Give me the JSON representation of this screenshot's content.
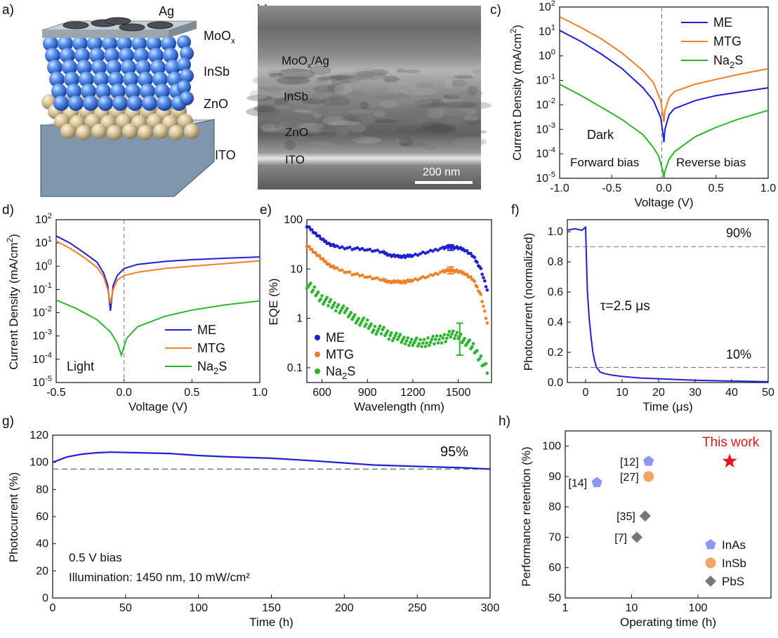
{
  "panel_labels": [
    "a)",
    "b)",
    "c)",
    "d)",
    "e)",
    "f)",
    "g)",
    "h)"
  ],
  "schematic": {
    "layers": [
      "Ag",
      "MoOx",
      "InSb",
      "ZnO",
      "ITO"
    ],
    "colors": {
      "glass": "#8fa6ba",
      "zno": "#d9c8a0",
      "insb": "#3d7be6",
      "moox": "#b9c4cc",
      "ag": "#555a60"
    }
  },
  "sem": {
    "labels": [
      "MoOx/Ag",
      "InSb",
      "ZnO",
      "ITO"
    ],
    "scale_bar": "200 nm"
  },
  "colors": {
    "ME": "#1f1fd6",
    "MTG": "#f07f25",
    "Na2S": "#2db52d",
    "red_star": "#e8141c",
    "InAs": "#8f96f2",
    "InSb": "#f3a566",
    "PbS": "#777777"
  },
  "chart_data": [
    {
      "id": "c",
      "type": "line",
      "xlabel": "Voltage (V)",
      "ylabel": "Current Density (mA/cm²)",
      "xlim": [
        -1.0,
        1.0
      ],
      "ylim_log10": [
        -5,
        2
      ],
      "log_y": true,
      "xticks": [
        "-1.0",
        "-0.5",
        "0.0",
        "0.5",
        "1.0"
      ],
      "yticks": [
        "10⁻⁵",
        "10⁻⁴",
        "10⁻³",
        "10⁻²",
        "10⁻¹",
        "10⁰",
        "10¹",
        "10²"
      ],
      "annotations": [
        "Dark",
        "Forward bias",
        "Reverse bias"
      ],
      "legend": [
        "ME",
        "MTG",
        "Na2S"
      ],
      "legend_position": "top-right",
      "series": [
        {
          "name": "ME",
          "x": [
            -1.0,
            -0.8,
            -0.6,
            -0.4,
            -0.2,
            -0.1,
            -0.03,
            -0.005,
            0.0,
            0.01,
            0.05,
            0.1,
            0.3,
            0.5,
            0.7,
            1.0
          ],
          "y": [
            11,
            4,
            1.2,
            0.3,
            0.05,
            0.015,
            0.003,
            0.0005,
            0.0003,
            0.001,
            0.004,
            0.007,
            0.015,
            0.024,
            0.032,
            0.05
          ]
        },
        {
          "name": "MTG",
          "x": [
            -1.0,
            -0.8,
            -0.6,
            -0.4,
            -0.2,
            -0.1,
            -0.03,
            -0.005,
            0.0,
            0.01,
            0.05,
            0.1,
            0.3,
            0.5,
            0.7,
            1.0
          ],
          "y": [
            40,
            15,
            5,
            1.3,
            0.25,
            0.08,
            0.015,
            0.003,
            0.002,
            0.006,
            0.02,
            0.035,
            0.07,
            0.11,
            0.17,
            0.3
          ]
        },
        {
          "name": "Na2S",
          "x": [
            -1.0,
            -0.8,
            -0.6,
            -0.4,
            -0.2,
            -0.1,
            -0.05,
            -0.01,
            0.0,
            0.01,
            0.05,
            0.1,
            0.3,
            0.5,
            0.7,
            1.0
          ],
          "y": [
            0.07,
            0.025,
            0.008,
            0.0025,
            0.0006,
            0.00018,
            8e-05,
            2e-05,
            1e-05,
            2e-05,
            6e-05,
            0.00012,
            0.0005,
            0.0012,
            0.0025,
            0.006
          ]
        }
      ]
    },
    {
      "id": "d",
      "type": "line",
      "xlabel": "Voltage (V)",
      "ylabel": "Current Density (mA/cm²)",
      "xlim": [
        -0.5,
        1.0
      ],
      "ylim_log10": [
        -5,
        2
      ],
      "log_y": true,
      "xticks": [
        "-0.5",
        "0.0",
        "0.5",
        "1.0"
      ],
      "yticks": [
        "10⁻⁵",
        "10⁻⁴",
        "10⁻³",
        "10⁻²",
        "10⁻¹",
        "10⁰",
        "10¹",
        "10²"
      ],
      "annotations": [
        "Light"
      ],
      "legend": [
        "ME",
        "MTG",
        "Na2S"
      ],
      "legend_position": "bottom-right",
      "series": [
        {
          "name": "ME",
          "x": [
            -0.5,
            -0.4,
            -0.3,
            -0.2,
            -0.15,
            -0.12,
            -0.1,
            -0.08,
            -0.05,
            0.0,
            0.1,
            0.3,
            0.5,
            0.75,
            1.0
          ],
          "y": [
            20,
            10,
            4,
            1.5,
            0.5,
            0.15,
            0.012,
            0.15,
            0.4,
            0.8,
            1.2,
            1.6,
            1.9,
            2.2,
            2.5
          ]
        },
        {
          "name": "MTG",
          "x": [
            -0.5,
            -0.4,
            -0.3,
            -0.2,
            -0.15,
            -0.12,
            -0.1,
            -0.08,
            -0.05,
            0.0,
            0.1,
            0.3,
            0.5,
            0.75,
            1.0
          ],
          "y": [
            12,
            6,
            2.5,
            0.9,
            0.35,
            0.1,
            0.025,
            0.1,
            0.25,
            0.4,
            0.55,
            0.8,
            1.0,
            1.3,
            1.7
          ]
        },
        {
          "name": "Na2S",
          "x": [
            -0.5,
            -0.35,
            -0.2,
            -0.1,
            -0.05,
            -0.02,
            0.0,
            0.02,
            0.1,
            0.3,
            0.5,
            0.75,
            1.0
          ],
          "y": [
            0.035,
            0.015,
            0.005,
            0.0015,
            0.0005,
            0.00015,
            0.00035,
            0.0008,
            0.0025,
            0.007,
            0.013,
            0.022,
            0.032
          ]
        }
      ]
    },
    {
      "id": "e",
      "type": "scatter",
      "xlabel": "Wavelength (nm)",
      "ylabel": "EQE (%)",
      "xlim": [
        500,
        1720
      ],
      "ylim_log10": [
        -1.3,
        2
      ],
      "log_y": true,
      "xticks": [
        "600",
        "900",
        "1200",
        "1500"
      ],
      "yticks": [
        "0.1",
        "1",
        "10",
        "100"
      ],
      "legend": [
        "ME",
        "MTG",
        "Na2S"
      ],
      "legend_position": "bottom-left",
      "series": [
        {
          "name": "ME",
          "x": [
            500,
            550,
            600,
            650,
            700,
            800,
            900,
            1000,
            1050,
            1100,
            1150,
            1200,
            1300,
            1400,
            1450,
            1500,
            1550,
            1600,
            1650,
            1700
          ],
          "y": [
            75,
            55,
            40,
            32,
            28,
            26,
            25,
            22,
            19,
            18,
            18,
            19,
            22,
            27,
            28,
            27,
            24,
            18,
            10,
            3
          ]
        },
        {
          "name": "MTG",
          "x": [
            500,
            550,
            600,
            650,
            700,
            800,
            900,
            1000,
            1050,
            1100,
            1150,
            1200,
            1300,
            1400,
            1450,
            1500,
            1550,
            1600,
            1650,
            1700
          ],
          "y": [
            30,
            22,
            16,
            12,
            10,
            8,
            7,
            6,
            5.5,
            5.5,
            5.5,
            6,
            7,
            9,
            9.5,
            9,
            8,
            6,
            3,
            0.6
          ]
        },
        {
          "name": "Na2S",
          "x": [
            500,
            550,
            600,
            650,
            700,
            750,
            800,
            850,
            900,
            950,
            1000,
            1050,
            1100,
            1150,
            1200,
            1250,
            1300,
            1350,
            1400,
            1450,
            1500,
            1550,
            1600,
            1650,
            1700
          ],
          "y": [
            5,
            3.5,
            2.5,
            2,
            1.7,
            1.4,
            1.1,
            0.9,
            0.75,
            0.6,
            0.55,
            0.45,
            0.4,
            0.35,
            0.35,
            0.3,
            0.35,
            0.35,
            0.4,
            0.45,
            0.45,
            0.35,
            0.25,
            0.15,
            0.08
          ]
        }
      ],
      "error_bars": [
        {
          "series": "ME",
          "x": 1450,
          "low": 24,
          "high": 31
        },
        {
          "series": "MTG",
          "x": 1450,
          "low": 8,
          "high": 11
        },
        {
          "series": "Na2S",
          "x": 1510,
          "low": 0.18,
          "high": 0.8
        }
      ]
    },
    {
      "id": "f",
      "type": "line",
      "xlabel": "Time (μs)",
      "ylabel": "Photocurrent (normalized)",
      "xlim": [
        -5,
        50
      ],
      "ylim": [
        0,
        1.08
      ],
      "xticks": [
        "0",
        "10",
        "20",
        "30",
        "40",
        "50"
      ],
      "yticks": [
        "0.0",
        "0.2",
        "0.4",
        "0.6",
        "0.8",
        "1.0"
      ],
      "reference_lines": [
        0.9,
        0.1
      ],
      "annotations": [
        "90%",
        "10%",
        "τ=2.5 μs"
      ],
      "series": [
        {
          "name": "ME",
          "x": [
            -5,
            -3,
            -1,
            0,
            0.2,
            0.5,
            1,
            1.5,
            2,
            2.5,
            3,
            4,
            5,
            7,
            10,
            15,
            20,
            25,
            30,
            40,
            50
          ],
          "y": [
            1.01,
            1.02,
            1.01,
            1.03,
            0.85,
            0.6,
            0.42,
            0.3,
            0.2,
            0.14,
            0.1,
            0.07,
            0.06,
            0.05,
            0.04,
            0.03,
            0.025,
            0.02,
            0.015,
            0.01,
            0.005
          ]
        }
      ]
    },
    {
      "id": "g",
      "type": "line",
      "xlabel": "Time (h)",
      "ylabel": "Photocurrent (%)",
      "xlim": [
        0,
        300
      ],
      "ylim": [
        0,
        120
      ],
      "xticks": [
        "0",
        "50",
        "100",
        "150",
        "200",
        "250",
        "300"
      ],
      "yticks": [
        "0",
        "20",
        "40",
        "60",
        "80",
        "100",
        "120"
      ],
      "reference_lines": [
        95
      ],
      "annotations": [
        "95%",
        "0.5 V bias",
        "Illumination: 1450 nm, 10 mW/cm²"
      ],
      "series": [
        {
          "name": "Photocurrent",
          "x": [
            0,
            10,
            20,
            30,
            40,
            60,
            80,
            100,
            120,
            150,
            180,
            200,
            220,
            250,
            280,
            300
          ],
          "y": [
            100,
            104,
            106,
            107,
            107.5,
            107,
            106.5,
            105,
            104,
            103,
            101,
            99.5,
            98,
            97,
            96,
            95
          ]
        }
      ]
    },
    {
      "id": "h",
      "type": "scatter",
      "xlabel": "Operating time (h)",
      "ylabel": "Performance retention (%)",
      "xlim_log10": [
        0,
        3.1
      ],
      "log_x": true,
      "ylim": [
        50,
        105
      ],
      "xticks": [
        "1",
        "10",
        "100"
      ],
      "yticks": [
        "50",
        "60",
        "70",
        "80",
        "90",
        "100"
      ],
      "legend": [
        "InAs",
        "InSb",
        "PbS"
      ],
      "legend_position": "bottom-right",
      "points": [
        {
          "label": "[14]",
          "group": "InAs",
          "x": 3,
          "y": 88
        },
        {
          "label": "[12]",
          "group": "InAs",
          "x": 18,
          "y": 95
        },
        {
          "label": "[27]",
          "group": "InSb",
          "x": 18,
          "y": 90
        },
        {
          "label": "[35]",
          "group": "PbS",
          "x": 16,
          "y": 77
        },
        {
          "label": "[7]",
          "group": "PbS",
          "x": 12,
          "y": 70
        },
        {
          "label": "This work",
          "group": "This work",
          "x": 300,
          "y": 95
        }
      ]
    }
  ]
}
